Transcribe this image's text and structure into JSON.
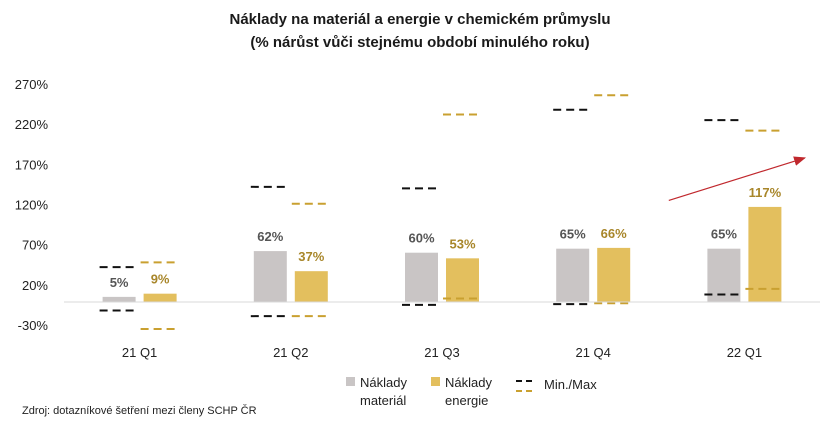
{
  "chart_data": {
    "type": "bar",
    "title": "Náklady na materiál a energie v chemickém průmyslu",
    "subtitle": "(% nárůst vůči stejnému období minulého roku)",
    "categories": [
      "21 Q1",
      "21 Q2",
      "21 Q3",
      "21 Q4",
      "22 Q1"
    ],
    "series": [
      {
        "name": "Náklady materiál",
        "name_lines": [
          "Náklady",
          "materiál"
        ],
        "color": "#c9c5c5",
        "label_color": "#555555",
        "values": [
          5,
          62,
          60,
          65,
          65
        ],
        "labels": [
          "5%",
          "62%",
          "60%",
          "65%",
          "65%"
        ],
        "min": [
          -12,
          -19,
          -5,
          -4,
          8
        ],
        "max": [
          42,
          142,
          140,
          238,
          225
        ]
      },
      {
        "name": "Náklady energie",
        "name_lines": [
          "Náklady",
          "energie"
        ],
        "color": "#e3bf5e",
        "label_color": "#a8862a",
        "values": [
          9,
          37,
          53,
          66,
          117
        ],
        "labels": [
          "9%",
          "37%",
          "53%",
          "66%",
          "117%"
        ],
        "min": [
          -35,
          -19,
          3,
          -3,
          15
        ],
        "max": [
          48,
          121,
          232,
          256,
          212
        ]
      }
    ],
    "minmax_legend": "Min./Max",
    "minmax_colors": [
      "#111111",
      "#c9a030"
    ],
    "ylim": [
      -30,
      270
    ],
    "yticks": [
      -30,
      20,
      70,
      120,
      170,
      220,
      270
    ],
    "ytick_labels": [
      "-30%",
      "20%",
      "70%",
      "120%",
      "170%",
      "220%",
      "270%"
    ],
    "annotation": {
      "type": "arrow",
      "color": "#c0282d",
      "from": [
        3.5,
        125
      ],
      "to": [
        4.4,
        178
      ]
    },
    "grid": false,
    "legend_position": "bottom-right"
  },
  "source": "Zdroj: dotazníkové šetření mezi členy SCHP ČR"
}
